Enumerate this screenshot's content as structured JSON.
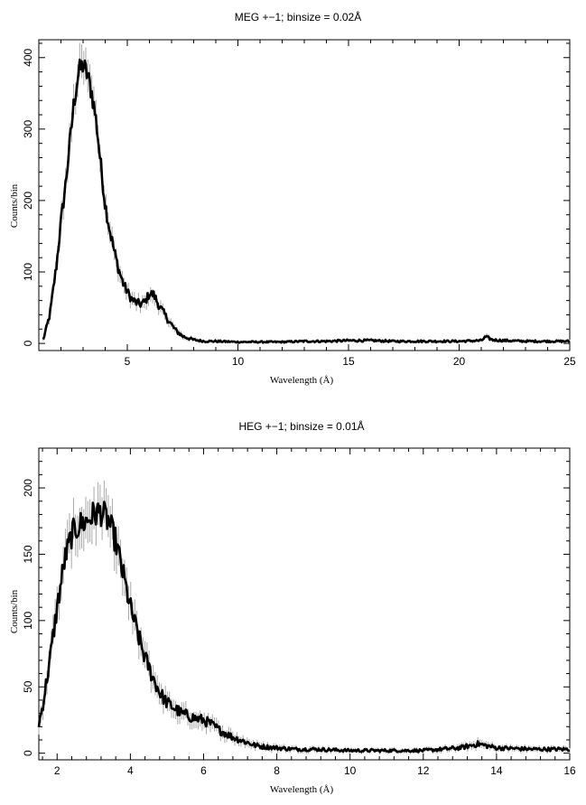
{
  "chart_data": [
    {
      "type": "line",
      "title": "MEG +−1; binsize = 0.02Å",
      "xlabel": "Wavelength (Å)",
      "ylabel": "Counts/bin",
      "xlim": [
        1.0,
        25.0
      ],
      "ylim": [
        -10,
        425
      ],
      "xticks": [
        5,
        10,
        15,
        20,
        25
      ],
      "xtick_labels": [
        "5",
        "10",
        "15",
        "20",
        "25"
      ],
      "yticks": [
        0,
        100,
        200,
        300,
        400
      ],
      "ytick_labels": [
        "0",
        "100",
        "200",
        "300",
        "400"
      ],
      "grid": false,
      "series": [
        {
          "x": [
            1.2,
            1.5,
            1.8,
            2.0,
            2.2,
            2.4,
            2.6,
            2.8,
            3.0,
            3.2,
            3.4,
            3.6,
            3.8,
            4.0,
            4.2,
            4.4,
            4.6,
            4.8,
            5.0,
            5.2,
            5.4,
            5.6,
            5.8,
            6.0,
            6.2,
            6.4,
            6.6,
            6.8,
            7.0,
            7.2,
            7.5,
            8.0,
            8.5,
            9.0,
            10.0,
            11.0,
            12.0,
            13.0,
            14.0,
            15.0,
            16.0,
            17.0,
            18.0,
            19.0,
            20.0,
            21.0,
            21.2,
            21.5,
            22.0,
            23.0,
            24.0,
            25.0
          ],
          "y": [
            5,
            40,
            110,
            170,
            220,
            280,
            340,
            380,
            390,
            375,
            350,
            310,
            250,
            195,
            160,
            130,
            105,
            85,
            72,
            62,
            57,
            55,
            58,
            70,
            68,
            55,
            45,
            35,
            26,
            18,
            10,
            5,
            3,
            3,
            2,
            2,
            2,
            3,
            3,
            4,
            4,
            3,
            3,
            3,
            3,
            4,
            9,
            5,
            4,
            3,
            3,
            3
          ]
        }
      ]
    },
    {
      "type": "line",
      "title": "HEG +−1; binsize = 0.01Å",
      "xlabel": "Wavelength (Å)",
      "ylabel": "Counts/bin",
      "xlim": [
        1.5,
        16.0
      ],
      "ylim": [
        -5,
        230
      ],
      "xticks": [
        2,
        4,
        6,
        8,
        10,
        12,
        14,
        16
      ],
      "xtick_labels": [
        "2",
        "4",
        "6",
        "8",
        "10",
        "12",
        "14",
        "16"
      ],
      "yticks": [
        0,
        50,
        100,
        150,
        200
      ],
      "ytick_labels": [
        "0",
        "50",
        "100",
        "150",
        "200"
      ],
      "grid": false,
      "series": [
        {
          "x": [
            1.5,
            1.6,
            1.8,
            2.0,
            2.2,
            2.4,
            2.6,
            2.8,
            3.0,
            3.2,
            3.4,
            3.6,
            3.8,
            4.0,
            4.2,
            4.4,
            4.6,
            4.8,
            5.0,
            5.2,
            5.4,
            5.6,
            5.8,
            6.0,
            6.2,
            6.4,
            6.6,
            6.8,
            7.0,
            7.2,
            7.4,
            7.6,
            8.0,
            8.5,
            9.0,
            10.0,
            11.0,
            12.0,
            13.0,
            13.5,
            14.0,
            15.0,
            16.0
          ],
          "y": [
            22,
            35,
            70,
            110,
            145,
            165,
            172,
            175,
            180,
            182,
            175,
            160,
            135,
            110,
            90,
            72,
            58,
            46,
            38,
            34,
            30,
            28,
            26,
            25,
            22,
            18,
            15,
            12,
            10,
            8,
            6,
            5,
            4,
            3,
            3,
            2,
            2,
            2,
            4,
            7,
            4,
            3,
            3
          ]
        }
      ]
    }
  ]
}
